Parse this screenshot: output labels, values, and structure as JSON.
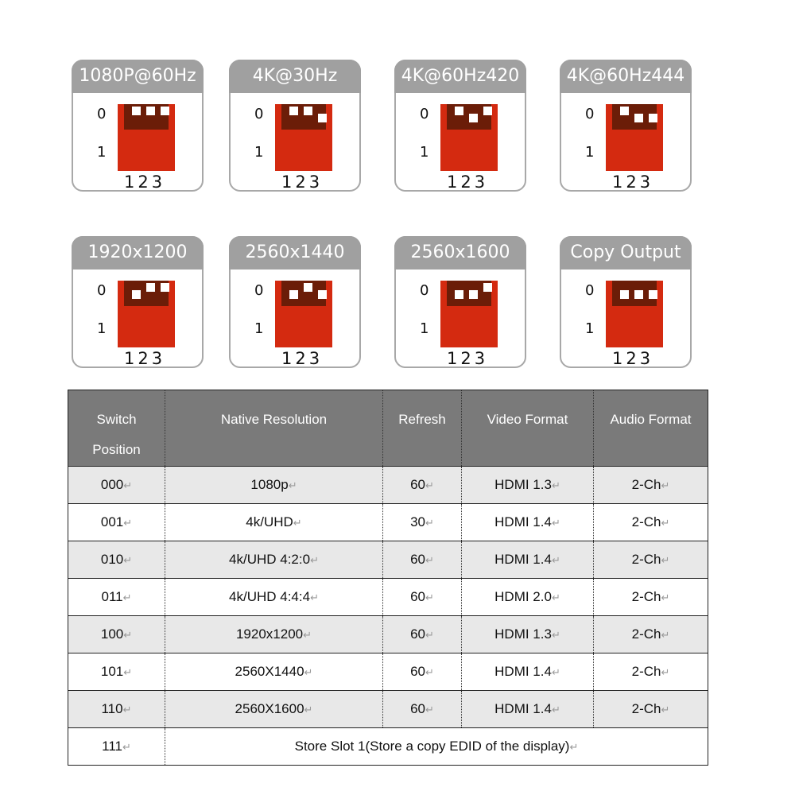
{
  "cards": [
    {
      "title": "1080P@60Hz",
      "setting": "000"
    },
    {
      "title": "4K@30Hz",
      "setting": "001"
    },
    {
      "title": "4K@60Hz420",
      "setting": "010"
    },
    {
      "title": "4K@60Hz444",
      "setting": "011"
    },
    {
      "title": "1920x1200",
      "setting": "100"
    },
    {
      "title": "2560x1440",
      "setting": "101"
    },
    {
      "title": "2560x1600",
      "setting": "110"
    },
    {
      "title": "Copy Output",
      "setting": "111"
    }
  ],
  "switch_labels": {
    "off": "0",
    "on": "1",
    "numbers": "123"
  },
  "colors": {
    "switch_body": "#d42a10",
    "switch_slot": "#6b1d08",
    "header": "#7a7a7a"
  },
  "table": {
    "headers": [
      "Switch Position",
      "Native Resolution",
      "Refresh",
      "Video Format",
      "Audio Format"
    ],
    "header_lines": {
      "switch1": "Switch",
      "switch2": "Position"
    },
    "return_mark": "↵",
    "rows": [
      [
        "000",
        "1080p",
        "60",
        "HDMI 1.3",
        "2-Ch"
      ],
      [
        "001",
        "4k/UHD",
        "30",
        "HDMI 1.4",
        "2-Ch"
      ],
      [
        "010",
        "4k/UHD 4:2:0",
        "60",
        "HDMI 1.4",
        "2-Ch"
      ],
      [
        "011",
        "4k/UHD 4:4:4",
        "60",
        "HDMI 2.0",
        "2-Ch"
      ],
      [
        "100",
        "1920x1200",
        "60",
        "HDMI 1.3",
        "2-Ch"
      ],
      [
        "101",
        "2560X1440",
        "60",
        "HDMI 1.4",
        "2-Ch"
      ],
      [
        "110",
        "2560X1600",
        "60",
        "HDMI 1.4",
        "2-Ch"
      ]
    ],
    "last_row": {
      "position": "111",
      "description": "Store Slot 1(Store a copy EDID of the display)"
    }
  }
}
